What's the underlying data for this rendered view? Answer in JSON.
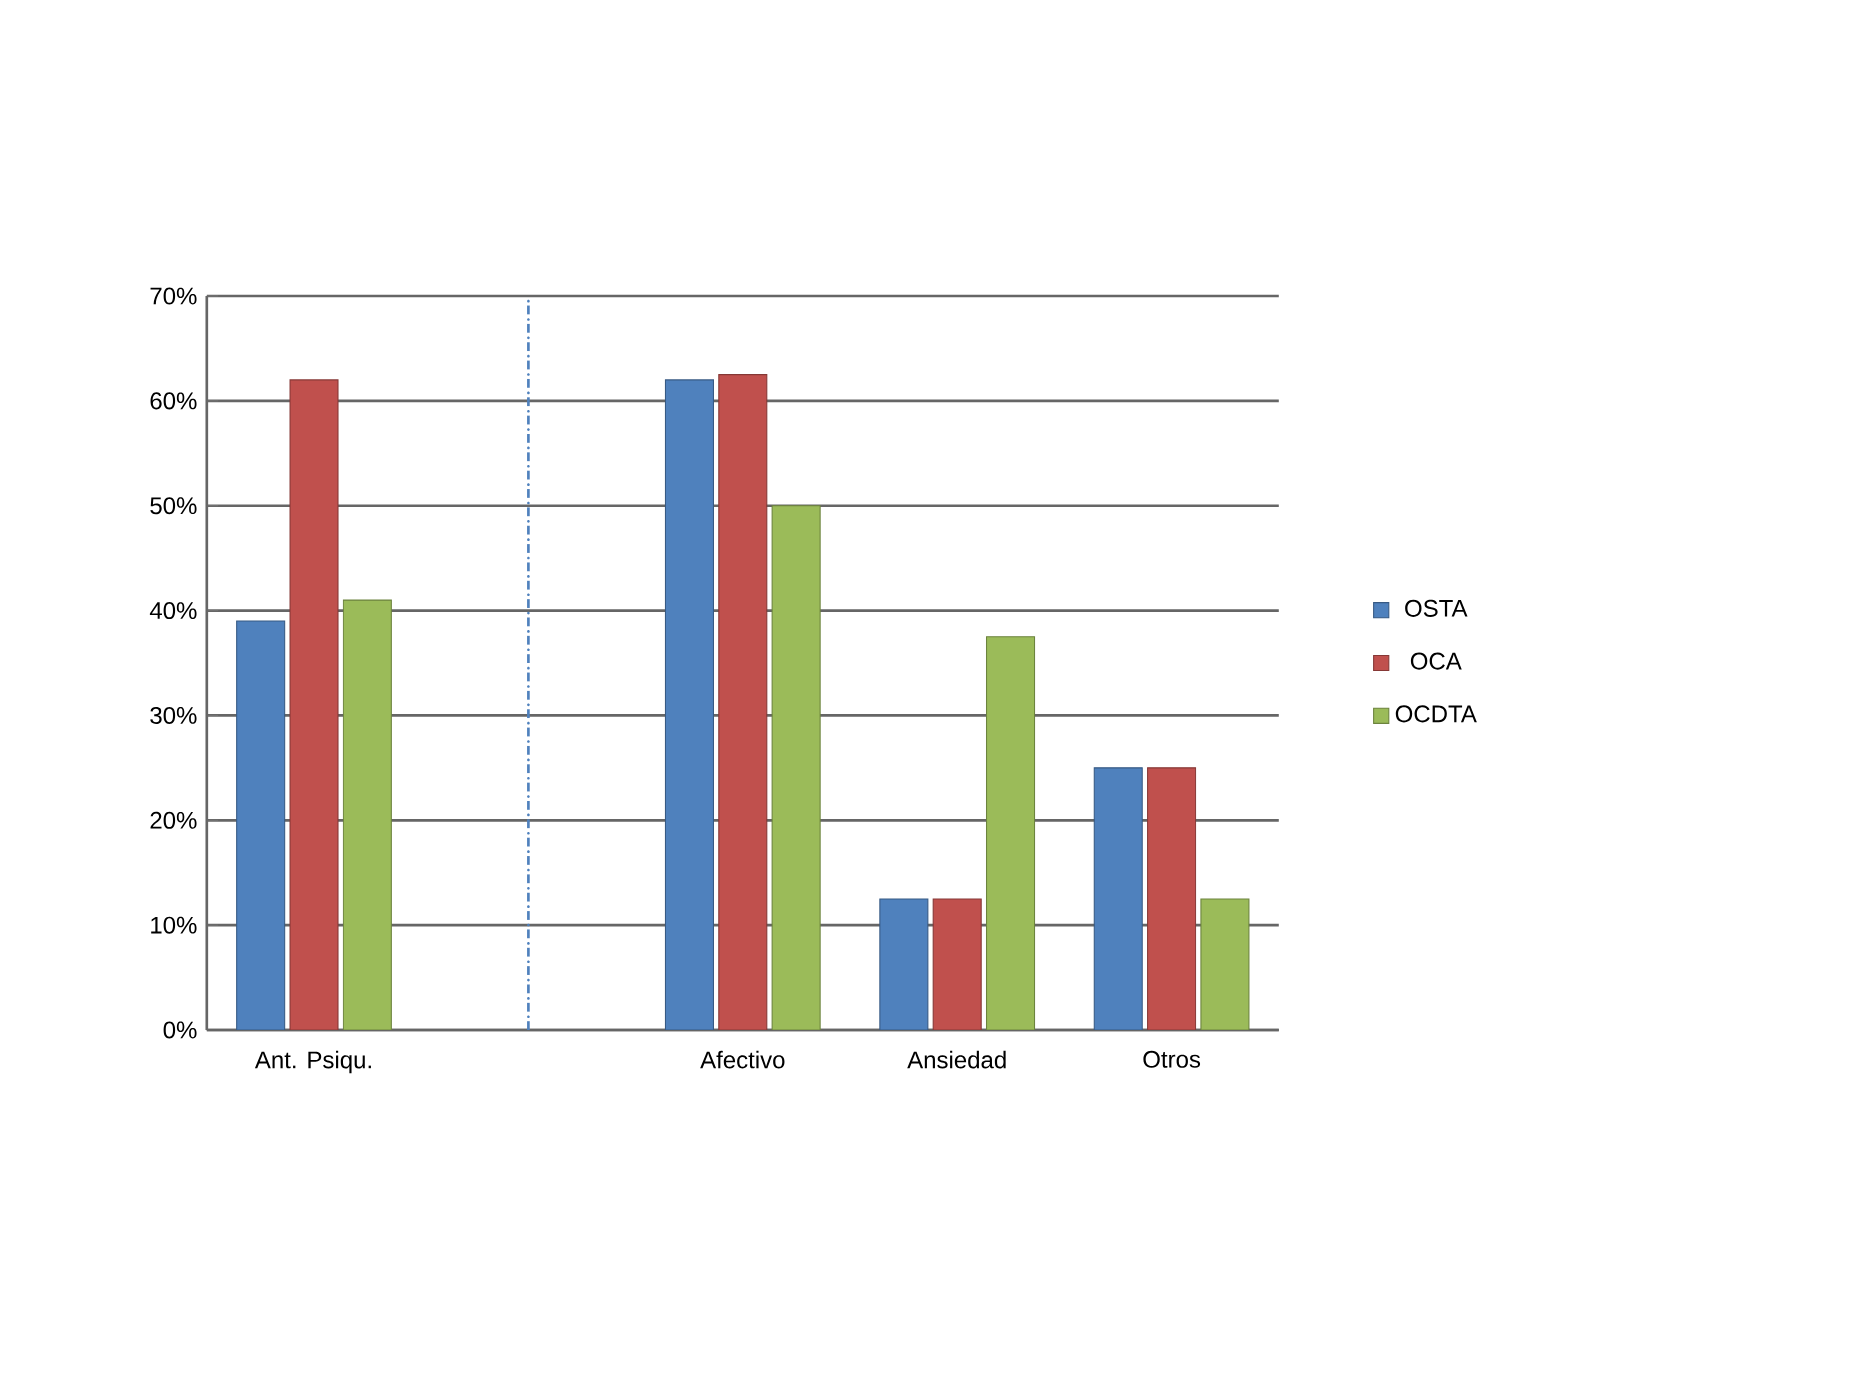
{
  "chart_data": {
    "type": "bar",
    "categories": [
      "Ant. Psiqu.",
      null,
      "Afectivo",
      "Ansiedad",
      "Otros"
    ],
    "series": [
      {
        "name": "OSTA",
        "color": "#4f81bd",
        "values": [
          39,
          null,
          62,
          12.5,
          25
        ]
      },
      {
        "name": "OCA",
        "color": "#c0504d",
        "values": [
          62,
          null,
          62.5,
          12.5,
          25
        ]
      },
      {
        "name": "OCDTA",
        "color": "#9bbb59",
        "values": [
          41,
          null,
          50,
          37.5,
          12.5
        ]
      }
    ],
    "ylim": [
      0,
      70
    ],
    "yticks": [
      {
        "value": 0,
        "label": "0%"
      },
      {
        "value": 10,
        "label": "10%"
      },
      {
        "value": 20,
        "label": "20%"
      },
      {
        "value": 30,
        "label": "30%"
      },
      {
        "value": 40,
        "label": "40%"
      },
      {
        "value": 50,
        "label": "50%"
      },
      {
        "value": 60,
        "label": "60%"
      },
      {
        "value": 70,
        "label": "70%"
      }
    ],
    "grid": "y",
    "legend": "right"
  }
}
